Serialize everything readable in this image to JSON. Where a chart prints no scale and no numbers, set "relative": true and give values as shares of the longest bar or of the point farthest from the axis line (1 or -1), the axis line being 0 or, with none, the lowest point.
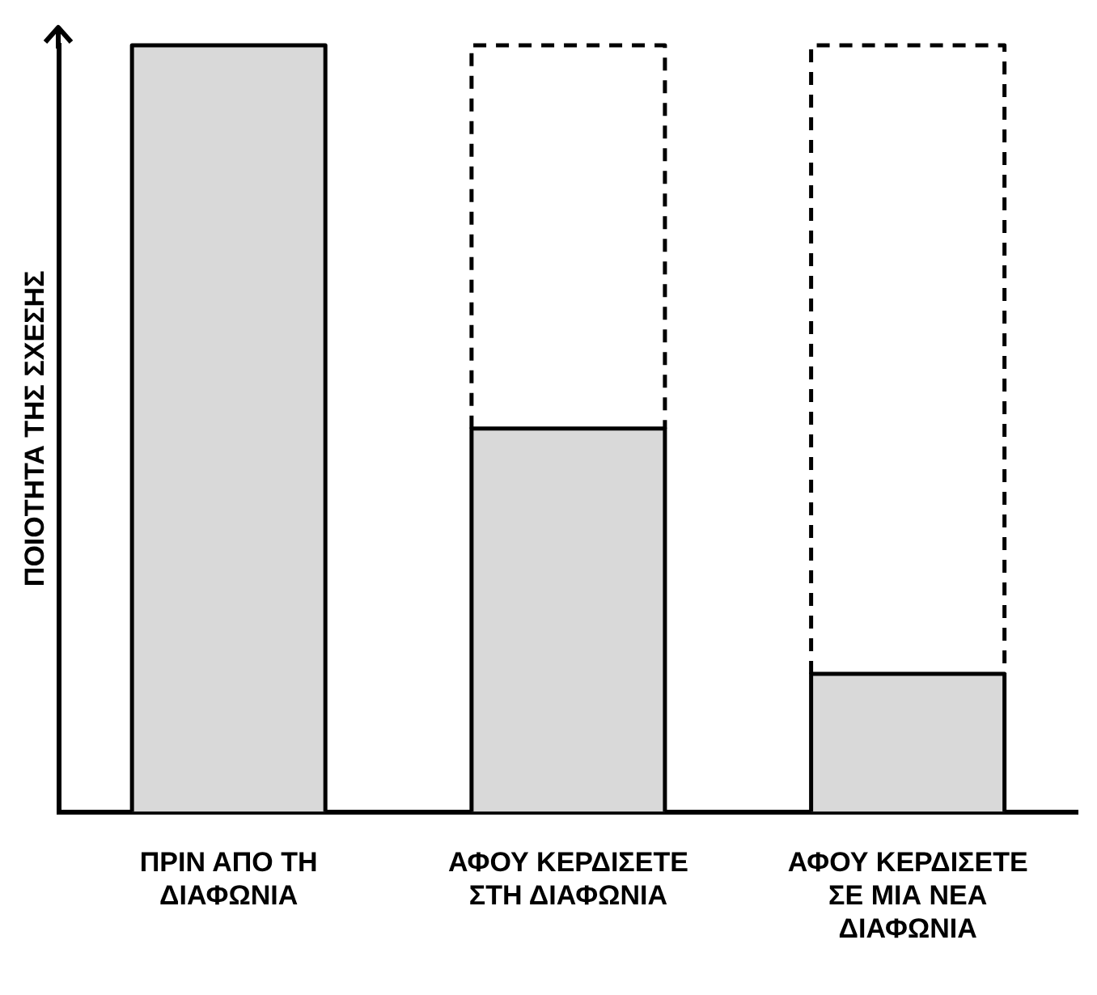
{
  "chart_data": {
    "type": "bar",
    "relative": true,
    "stacked": true,
    "ylabel": "ΠΟΙΟΤΗΤΑ ΤΗΣ ΣΧΕΣΗΣ",
    "categories": [
      "ΠΡΙΝ ΑΠΟ ΤΗ ΔΙΑΦΩΝΙΑ",
      "ΑΦΟΥ ΚΕΡΔΙΣΕΤΕ ΣΤΗ ΔΙΑΦΩΝΙΑ",
      "ΑΦΟΥ ΚΕΡΔΙΣΕΤΕ ΣΕ ΜΙΑ ΝΕΑ ΔΙΑΦΩΝΙΑ"
    ],
    "grid": false,
    "legend": false,
    "series": [
      {
        "color": "#d9d9d9",
        "values": [
          1,
          0.5,
          0.18
        ]
      },
      {
        "color": "#ffffff",
        "line_style": "dashed",
        "values": [
          null,
          0.5,
          0.82
        ]
      }
    ]
  }
}
